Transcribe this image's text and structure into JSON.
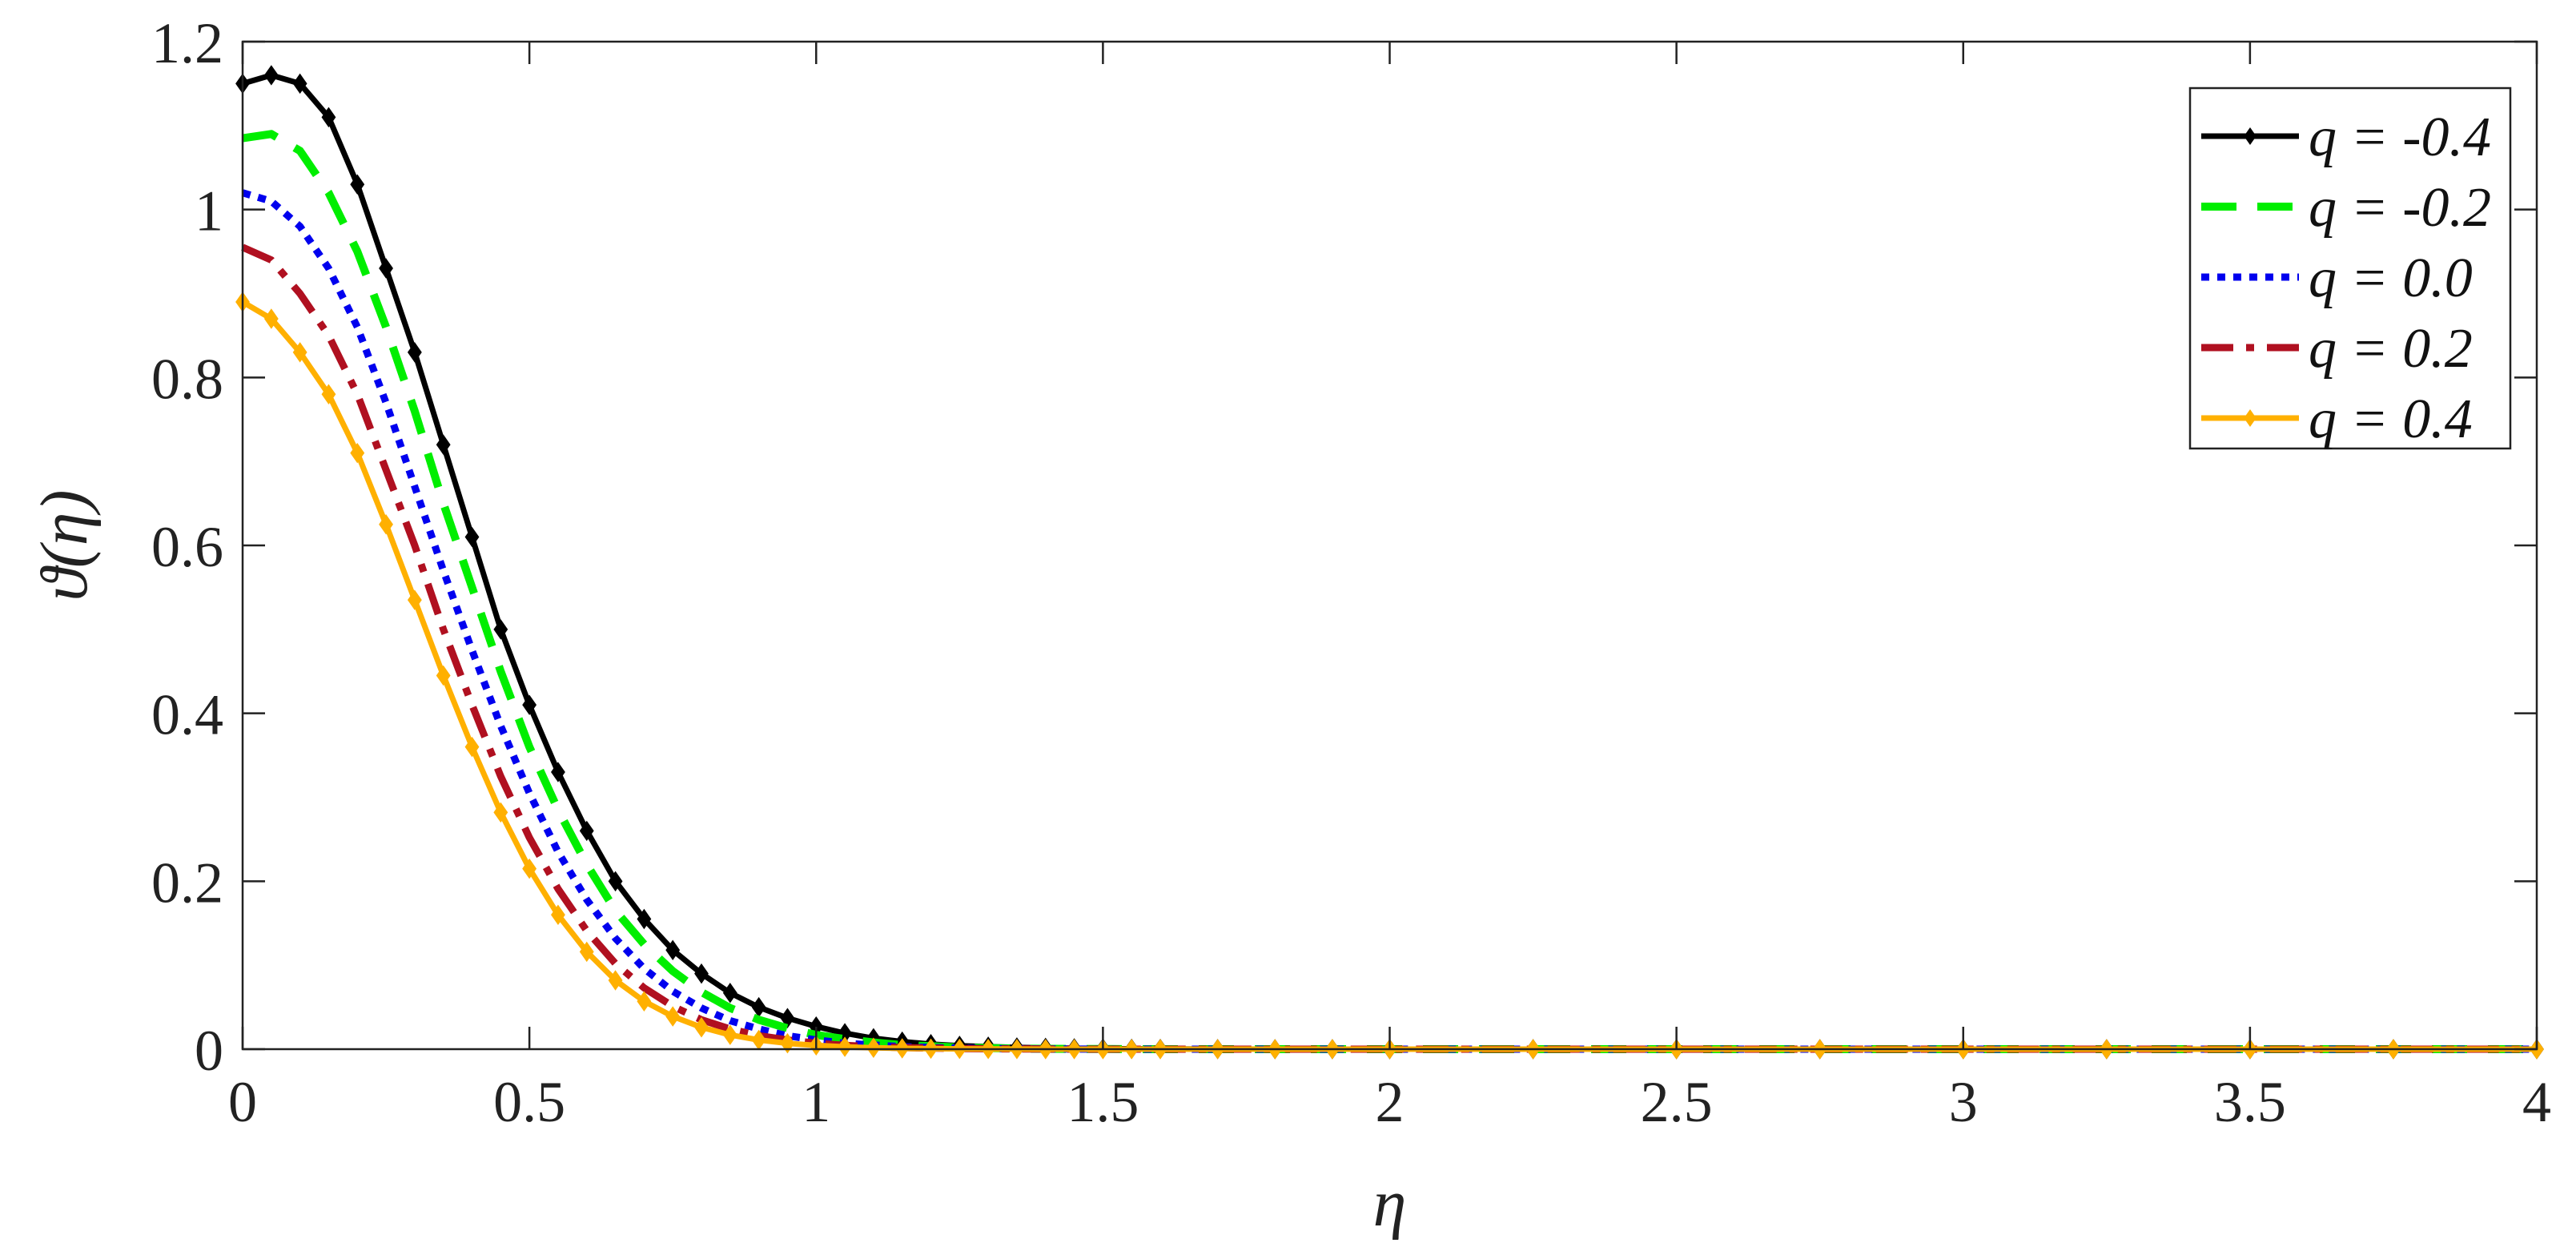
{
  "chart_data": {
    "type": "line",
    "title": "",
    "xlabel": "η",
    "ylabel": "ϑ(η)",
    "xlim": [
      0,
      4
    ],
    "ylim": [
      0,
      1.2
    ],
    "xticks": [
      "0",
      "0.5",
      "1",
      "1.5",
      "2",
      "2.5",
      "3",
      "3.5",
      "4"
    ],
    "yticks": [
      "0",
      "0.2",
      "0.4",
      "0.6",
      "0.8",
      "1",
      "1.2"
    ],
    "grid": false,
    "legend_position": "top-right",
    "x": [
      0,
      0.05,
      0.1,
      0.15,
      0.2,
      0.25,
      0.3,
      0.35,
      0.4,
      0.45,
      0.5,
      0.55,
      0.6,
      0.65,
      0.7,
      0.75,
      0.8,
      0.85,
      0.9,
      0.95,
      1.0,
      1.05,
      1.1,
      1.15,
      1.2,
      1.25,
      1.3,
      1.35,
      1.4,
      1.45,
      1.5,
      1.55,
      1.6,
      1.7,
      1.8,
      1.9,
      2.0,
      2.25,
      2.5,
      2.75,
      3.0,
      3.25,
      3.5,
      3.75,
      4.0
    ],
    "series": [
      {
        "name": "q = -0.4",
        "color": "#000000",
        "style": "solid-markers",
        "values": [
          1.15,
          1.16,
          1.15,
          1.11,
          1.03,
          0.93,
          0.83,
          0.72,
          0.61,
          0.5,
          0.41,
          0.33,
          0.26,
          0.2,
          0.155,
          0.118,
          0.09,
          0.067,
          0.05,
          0.037,
          0.027,
          0.019,
          0.013,
          0.009,
          0.006,
          0.004,
          0.003,
          0.002,
          0.0015,
          0.001,
          0.0006,
          0.0004,
          0.0003,
          0.0001,
          0,
          0,
          0,
          0,
          0,
          0,
          0,
          0,
          0,
          0,
          0
        ]
      },
      {
        "name": "q = -0.2",
        "color": "#00ee00",
        "style": "dashed",
        "values": [
          1.085,
          1.09,
          1.07,
          1.02,
          0.95,
          0.86,
          0.76,
          0.65,
          0.55,
          0.45,
          0.36,
          0.285,
          0.22,
          0.165,
          0.125,
          0.093,
          0.068,
          0.049,
          0.035,
          0.025,
          0.017,
          0.012,
          0.008,
          0.005,
          0.0035,
          0.002,
          0.0013,
          0.0008,
          0.0005,
          0.0003,
          0.0002,
          0.0001,
          0,
          0,
          0,
          0,
          0,
          0,
          0,
          0,
          0,
          0,
          0,
          0,
          0
        ]
      },
      {
        "name": "q = 0.0",
        "color": "#0000ee",
        "style": "dotted",
        "values": [
          1.02,
          1.01,
          0.98,
          0.93,
          0.86,
          0.77,
          0.67,
          0.57,
          0.475,
          0.385,
          0.305,
          0.235,
          0.178,
          0.132,
          0.096,
          0.069,
          0.049,
          0.034,
          0.024,
          0.016,
          0.011,
          0.007,
          0.005,
          0.003,
          0.002,
          0.0013,
          0.0008,
          0.0005,
          0.0003,
          0.0002,
          0.0001,
          0,
          0,
          0,
          0,
          0,
          0,
          0,
          0,
          0,
          0,
          0,
          0,
          0,
          0
        ]
      },
      {
        "name": "q = 0.2",
        "color": "#b01020",
        "style": "dashdot",
        "values": [
          0.955,
          0.94,
          0.9,
          0.85,
          0.78,
          0.69,
          0.6,
          0.5,
          0.41,
          0.325,
          0.252,
          0.191,
          0.141,
          0.102,
          0.073,
          0.051,
          0.035,
          0.024,
          0.016,
          0.011,
          0.007,
          0.0045,
          0.003,
          0.0019,
          0.0012,
          0.0008,
          0.0005,
          0.0003,
          0.0002,
          0.0001,
          0,
          0,
          0,
          0,
          0,
          0,
          0,
          0,
          0,
          0,
          0,
          0,
          0,
          0,
          0
        ]
      },
      {
        "name": "q = 0.4",
        "color": "#ffb000",
        "style": "solid-markers",
        "values": [
          0.89,
          0.87,
          0.83,
          0.78,
          0.71,
          0.625,
          0.535,
          0.445,
          0.36,
          0.282,
          0.215,
          0.16,
          0.116,
          0.082,
          0.057,
          0.039,
          0.026,
          0.017,
          0.011,
          0.007,
          0.0045,
          0.0028,
          0.0017,
          0.001,
          0.0006,
          0.0004,
          0.0002,
          0.0001,
          0,
          0,
          0,
          0,
          0,
          0,
          0,
          0,
          0,
          0,
          0,
          0,
          0,
          0,
          0,
          0,
          0
        ]
      }
    ]
  }
}
